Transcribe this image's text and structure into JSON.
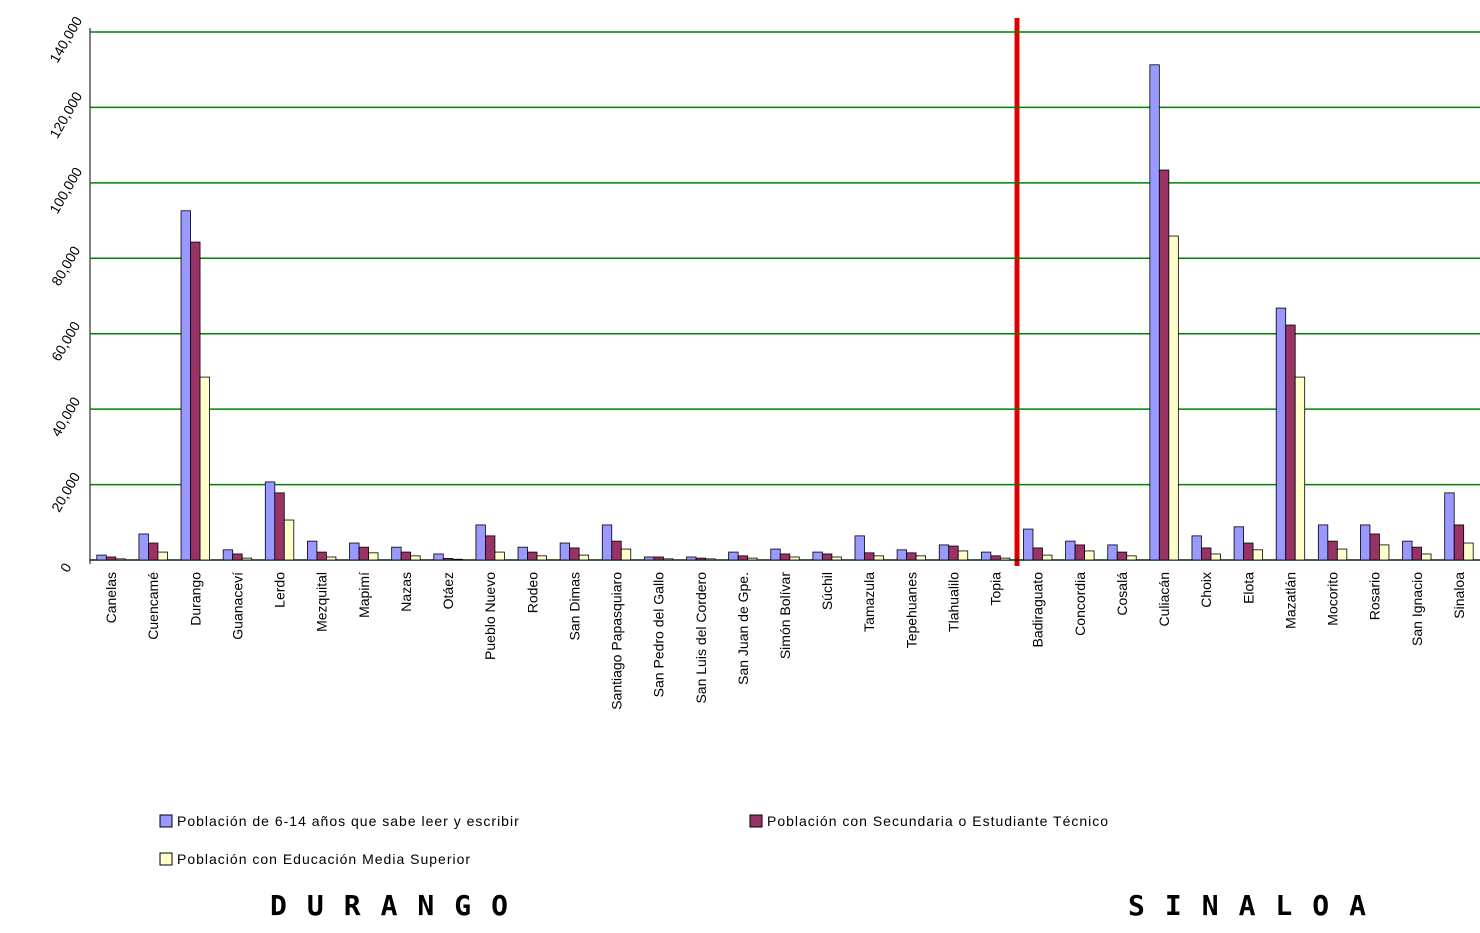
{
  "chart_data": {
    "type": "bar",
    "categories": [
      "Canelas",
      "Cuencamé",
      "Durango",
      "Guanaceví",
      "Lerdo",
      "Mezquital",
      "Mapimí",
      "Nazas",
      "Otáez",
      "Pueblo Nuevo",
      "Rodeo",
      "San Dimas",
      "Santiago Papasquiaro",
      "San Pedro del Gallo",
      "San Luis del Cordero",
      "San Juan de Gpe.",
      "Simón Bolívar",
      "Súchil",
      "Tamazula",
      "Tepehuanes",
      "Tlahualilo",
      "Topia",
      "Badiraguato",
      "Concordia",
      "Cosalá",
      "Culiacán",
      "Choix",
      "Elota",
      "Mazatlán",
      "Mocorito",
      "Rosario",
      "San Ignacio",
      "Sinaloa"
    ],
    "series": [
      {
        "name": "Población de 6-14 años que sabe leer y escribir",
        "color": "#9999ff",
        "values": [
          1300,
          6900,
          92600,
          2700,
          20700,
          5000,
          4500,
          3400,
          1600,
          9300,
          3400,
          4500,
          9300,
          800,
          800,
          2100,
          2900,
          2100,
          6400,
          2700,
          4000,
          2100,
          8200,
          5000,
          4000,
          131300,
          6400,
          8800,
          66800,
          9300,
          9300,
          5000,
          17800
        ]
      },
      {
        "name": "Población con Secundaria o Estudiante Técnico",
        "color": "#993366",
        "values": [
          800,
          4500,
          84300,
          1600,
          17800,
          2100,
          3400,
          2100,
          400,
          6400,
          2100,
          3200,
          5000,
          800,
          500,
          1100,
          1600,
          1600,
          1900,
          1900,
          3700,
          1100,
          3200,
          4000,
          2100,
          103400,
          3200,
          4500,
          62300,
          5000,
          6900,
          3400,
          9300
        ]
      },
      {
        "name": "Población con Educación Media Superior",
        "color": "#ffffcc",
        "values": [
          300,
          2100,
          48500,
          500,
          10600,
          800,
          1900,
          1100,
          200,
          2100,
          1100,
          1300,
          2900,
          300,
          300,
          500,
          800,
          800,
          1100,
          1100,
          2400,
          500,
          1300,
          2400,
          1100,
          85900,
          1600,
          2700,
          48500,
          2900,
          4000,
          1600,
          4500
        ]
      }
    ],
    "ylim": [
      0,
      140000
    ],
    "yticks": [
      0,
      {
        "value": 20000,
        "label": "20,000"
      },
      {
        "value": 40000,
        "label": "40,000"
      },
      {
        "value": 60000,
        "label": "60,000"
      },
      {
        "value": 80000,
        "label": "80,000"
      },
      {
        "value": 100000,
        "label": "100,000"
      },
      {
        "value": 120000,
        "label": "120,000"
      },
      {
        "value": 140000,
        "label": "140,000"
      }
    ],
    "grid": true,
    "grid_color": "#008000",
    "groups": [
      {
        "label": "DURANGO",
        "color": "#008000"
      },
      {
        "label": "SINALOA",
        "color": "#4a74d0"
      }
    ]
  }
}
